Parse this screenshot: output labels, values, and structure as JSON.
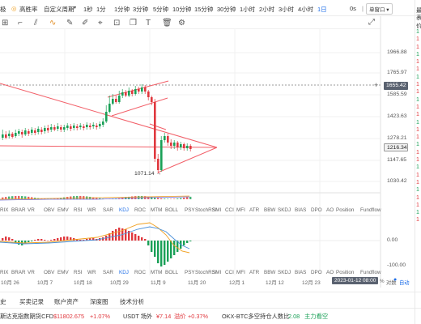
{
  "toolbar": {
    "tool_a": "极",
    "highlight_label": "高胜率",
    "custom_period": "自定义周期",
    "periods": [
      "1秒",
      "1分",
      "1分钟",
      "3分钟",
      "5分钟",
      "10分钟",
      "15分钟",
      "30分钟",
      "1小时",
      "2小时",
      "3小时",
      "4小时",
      "1日"
    ],
    "active_period": "1日",
    "right_label": "0s",
    "layout_label": "单窗口"
  },
  "price_axis": {
    "labels": [
      "1966.88",
      "1765.97",
      "1585.59",
      "1423.63",
      "1278.21",
      "1147.65",
      "1030.42"
    ],
    "crosshair_price": "1655.42",
    "current_price": "1216.34",
    "low_label": "1071.14"
  },
  "macd_axis": [
    "0.00",
    "-100.00"
  ],
  "indicator_tabs_top": [
    "RIX",
    "BRAR",
    "VR",
    "OBV",
    "EMV",
    "RSI",
    "WR",
    "SAR",
    "KDJ",
    "ROC",
    "MTM",
    "BOLL",
    "PSY",
    "StochRSI",
    "SMI",
    "CCI",
    "MFI",
    "ATR",
    "BBW",
    "SKDJ",
    "BIAS",
    "DPO",
    "AO",
    "Position",
    "Fundflow"
  ],
  "active_indicator_top": "KDJ",
  "indicator_tabs_bottom": [
    "RIX",
    "BRAR",
    "VR",
    "OBV",
    "EMV",
    "RSI",
    "WR",
    "SAR",
    "KDJ",
    "ROC",
    "MTM",
    "BOLL",
    "PSY",
    "StochRSI",
    "SMI",
    "CCI",
    "MFI",
    "ATR",
    "BBW",
    "SKDJ",
    "BIAS",
    "DPO",
    "AO",
    "Position",
    "Fundflow"
  ],
  "active_indicator_bottom": "KDJ",
  "dates": [
    "10月 26",
    "10月 7",
    "10月 18",
    "10月 29",
    "11月 9",
    "11月 20",
    "12月 1",
    "12月 12",
    "12月 23"
  ],
  "date_highlight": "2023-01-12 08:00",
  "axis_footer": {
    "pct": "%",
    "log": "对数",
    "auto": "自动"
  },
  "bottom_tabs": [
    "史",
    "买卖记录",
    "账户资产",
    "深度图",
    "技术分析"
  ],
  "tickers": [
    {
      "name": "斯达克指数期货CFD",
      "price": "$11802.675",
      "change": "+1.07%"
    },
    {
      "name": "USDT 场外",
      "price": "¥7.14",
      "tag": "溢价",
      "change": "+0.37%"
    },
    {
      "name": "OKX-BTC多空持仓人数比",
      "value": "2.08",
      "note": "主力看空"
    }
  ],
  "right_column": [
    "最",
    "表",
    "价",
    "1",
    "1",
    "1",
    "1",
    "1",
    "1",
    "1",
    "1",
    "1",
    "1",
    "1",
    "1",
    "1",
    "1",
    "1",
    "1",
    "1",
    "1",
    "1",
    "1",
    "1",
    "1",
    "1",
    "1",
    "1",
    "1"
  ]
}
